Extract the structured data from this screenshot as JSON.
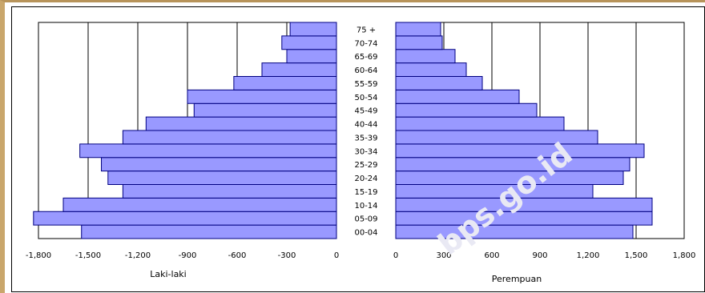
{
  "chart_data": {
    "type": "bar",
    "orientation": "horizontal",
    "layout": "population-pyramid",
    "categories": [
      "00-04",
      "05-09",
      "10-14",
      "15-19",
      "20-24",
      "25-29",
      "30-34",
      "35-39",
      "40-44",
      "45-49",
      "50-54",
      "55-59",
      "60-64",
      "65-69",
      "70-74",
      "75 +"
    ],
    "series": [
      {
        "name": "Laki-laki",
        "values": [
          1540,
          1830,
          1650,
          1290,
          1380,
          1420,
          1550,
          1290,
          1150,
          860,
          900,
          620,
          450,
          300,
          330,
          280
        ]
      },
      {
        "name": "Perempuan",
        "values": [
          1480,
          1600,
          1600,
          1230,
          1420,
          1460,
          1550,
          1260,
          1050,
          880,
          770,
          540,
          440,
          370,
          290,
          280
        ]
      }
    ],
    "left_axis": {
      "label": "Laki-laki",
      "ticks": [
        "-1,800",
        "-1,500",
        "-1,200",
        "-900",
        "-600",
        "-300",
        "0"
      ],
      "range": [
        -1800,
        0
      ]
    },
    "right_axis": {
      "label": "Perempuan",
      "ticks": [
        "0",
        "300",
        "600",
        "900",
        "1,200",
        "1,500",
        "1,800"
      ],
      "range": [
        0,
        1800
      ]
    },
    "watermark": "bps.go.id",
    "grid": true,
    "colors": {
      "bar_fill": "#9999ff",
      "bar_stroke": "#000080",
      "grid": "#000000"
    }
  }
}
